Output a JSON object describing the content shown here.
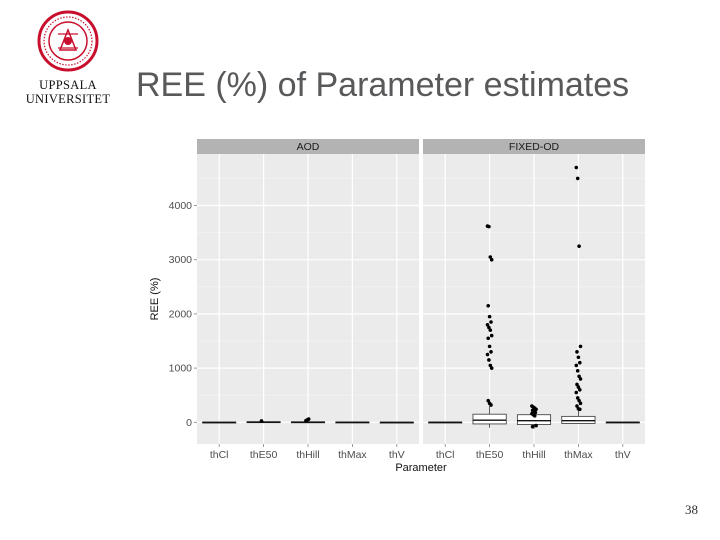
{
  "slide": {
    "title": "REE (%) of Parameter estimates",
    "page_number": "38",
    "logo": {
      "line1": "UPPSALA",
      "line2": "UNIVERSITET",
      "seal_color": "#c8102e",
      "icon": "uppsala-seal-icon"
    }
  },
  "chart_data": {
    "type": "boxplot",
    "xlabel": "Parameter",
    "ylabel": "REE (%)",
    "ylim": [
      -400,
      4950
    ],
    "yticks": [
      0,
      1000,
      2000,
      3000,
      4000
    ],
    "categories": [
      "thCl",
      "thE50",
      "thHill",
      "thMax",
      "thV"
    ],
    "grid": true,
    "legend": "none",
    "colors": {
      "panel_bg": "#ebebeb",
      "strip_bg": "#b3b3b3",
      "grid": "#ffffff",
      "box_fill": "#ffffff",
      "point": "#000000"
    },
    "panels": [
      {
        "label": "AOD",
        "boxes": [
          {
            "category": "thCl",
            "q1": -8,
            "median": -2,
            "q3": 5,
            "whisker_low": -15,
            "whisker_high": 12
          },
          {
            "category": "thE50",
            "q1": -5,
            "median": 3,
            "q3": 12,
            "whisker_low": -12,
            "whisker_high": 22
          },
          {
            "category": "thHill",
            "q1": -6,
            "median": 2,
            "q3": 10,
            "whisker_low": -15,
            "whisker_high": 22
          },
          {
            "category": "thMax",
            "q1": -4,
            "median": 1,
            "q3": 6,
            "whisker_low": -8,
            "whisker_high": 10
          },
          {
            "category": "thV",
            "q1": -8,
            "median": -2,
            "q3": 4,
            "whisker_low": -12,
            "whisker_high": 8
          }
        ],
        "outliers": [
          {
            "category": "thHill",
            "values": [
              30,
              45,
              60
            ]
          },
          {
            "category": "thE50",
            "values": [
              25
            ]
          }
        ]
      },
      {
        "label": "FIXED-OD",
        "boxes": [
          {
            "category": "thCl",
            "q1": -5,
            "median": 0,
            "q3": 5,
            "whisker_low": -10,
            "whisker_high": 10
          },
          {
            "category": "thE50",
            "q1": -30,
            "median": 40,
            "q3": 150,
            "whisker_low": -100,
            "whisker_high": 300
          },
          {
            "category": "thHill",
            "q1": -40,
            "median": 30,
            "q3": 140,
            "whisker_low": -120,
            "whisker_high": 260
          },
          {
            "category": "thMax",
            "q1": -20,
            "median": 30,
            "q3": 110,
            "whisker_low": -20,
            "whisker_high": 220
          },
          {
            "category": "thV",
            "q1": -5,
            "median": 0,
            "q3": 5,
            "whisker_low": -10,
            "whisker_high": 10
          }
        ],
        "outliers": [
          {
            "category": "thE50",
            "values": [
              3620,
              3610,
              3050,
              3000,
              2150,
              1950,
              1850,
              1800,
              1750,
              1700,
              1600,
              1550,
              1400,
              1300,
              1250,
              1150,
              1050,
              1000,
              400,
              350,
              320
            ]
          },
          {
            "category": "thHill",
            "values": [
              300,
              280,
              260,
              240,
              220,
              200,
              180,
              160,
              140,
              120,
              -60,
              -80
            ]
          },
          {
            "category": "thMax",
            "values": [
              4700,
              4500,
              3250,
              1400,
              1300,
              1200,
              1100,
              1050,
              950,
              850,
              800,
              700,
              650,
              600,
              550,
              450,
              400,
              350,
              300,
              250,
              240
            ]
          }
        ]
      }
    ]
  }
}
